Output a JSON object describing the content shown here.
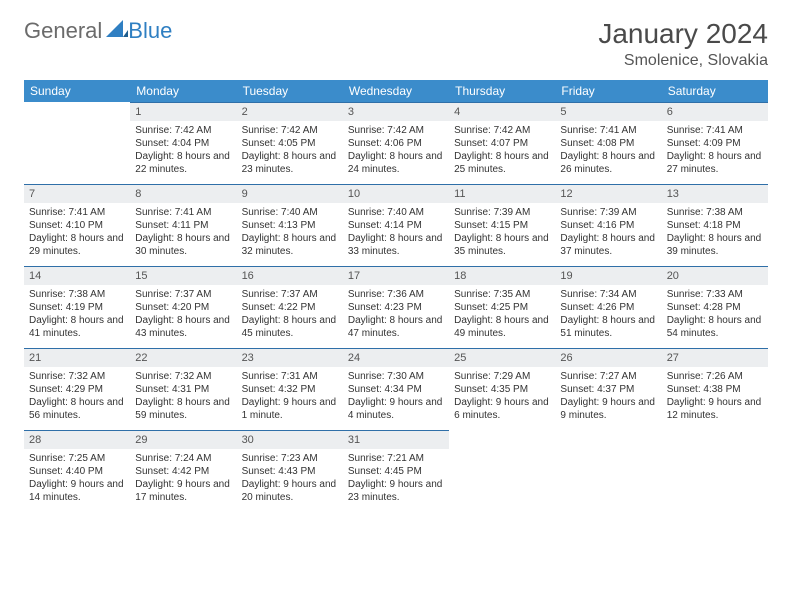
{
  "brand": {
    "part1": "General",
    "part2": "Blue"
  },
  "title": "January 2024",
  "location": "Smolenice, Slovakia",
  "colors": {
    "header_bg": "#3b8ccb",
    "header_text": "#ffffff",
    "daynum_bg": "#eceef0",
    "rule": "#2f6fa8",
    "body_text": "#333333",
    "title_text": "#4a4a4a",
    "brand_grey": "#6b6b6b",
    "brand_blue": "#2f7fc2"
  },
  "dayNames": [
    "Sunday",
    "Monday",
    "Tuesday",
    "Wednesday",
    "Thursday",
    "Friday",
    "Saturday"
  ],
  "startOffset": 1,
  "daysInMonth": 31,
  "days": {
    "1": {
      "sr": "7:42 AM",
      "ss": "4:04 PM",
      "dl": "8 hours and 22 minutes."
    },
    "2": {
      "sr": "7:42 AM",
      "ss": "4:05 PM",
      "dl": "8 hours and 23 minutes."
    },
    "3": {
      "sr": "7:42 AM",
      "ss": "4:06 PM",
      "dl": "8 hours and 24 minutes."
    },
    "4": {
      "sr": "7:42 AM",
      "ss": "4:07 PM",
      "dl": "8 hours and 25 minutes."
    },
    "5": {
      "sr": "7:41 AM",
      "ss": "4:08 PM",
      "dl": "8 hours and 26 minutes."
    },
    "6": {
      "sr": "7:41 AM",
      "ss": "4:09 PM",
      "dl": "8 hours and 27 minutes."
    },
    "7": {
      "sr": "7:41 AM",
      "ss": "4:10 PM",
      "dl": "8 hours and 29 minutes."
    },
    "8": {
      "sr": "7:41 AM",
      "ss": "4:11 PM",
      "dl": "8 hours and 30 minutes."
    },
    "9": {
      "sr": "7:40 AM",
      "ss": "4:13 PM",
      "dl": "8 hours and 32 minutes."
    },
    "10": {
      "sr": "7:40 AM",
      "ss": "4:14 PM",
      "dl": "8 hours and 33 minutes."
    },
    "11": {
      "sr": "7:39 AM",
      "ss": "4:15 PM",
      "dl": "8 hours and 35 minutes."
    },
    "12": {
      "sr": "7:39 AM",
      "ss": "4:16 PM",
      "dl": "8 hours and 37 minutes."
    },
    "13": {
      "sr": "7:38 AM",
      "ss": "4:18 PM",
      "dl": "8 hours and 39 minutes."
    },
    "14": {
      "sr": "7:38 AM",
      "ss": "4:19 PM",
      "dl": "8 hours and 41 minutes."
    },
    "15": {
      "sr": "7:37 AM",
      "ss": "4:20 PM",
      "dl": "8 hours and 43 minutes."
    },
    "16": {
      "sr": "7:37 AM",
      "ss": "4:22 PM",
      "dl": "8 hours and 45 minutes."
    },
    "17": {
      "sr": "7:36 AM",
      "ss": "4:23 PM",
      "dl": "8 hours and 47 minutes."
    },
    "18": {
      "sr": "7:35 AM",
      "ss": "4:25 PM",
      "dl": "8 hours and 49 minutes."
    },
    "19": {
      "sr": "7:34 AM",
      "ss": "4:26 PM",
      "dl": "8 hours and 51 minutes."
    },
    "20": {
      "sr": "7:33 AM",
      "ss": "4:28 PM",
      "dl": "8 hours and 54 minutes."
    },
    "21": {
      "sr": "7:32 AM",
      "ss": "4:29 PM",
      "dl": "8 hours and 56 minutes."
    },
    "22": {
      "sr": "7:32 AM",
      "ss": "4:31 PM",
      "dl": "8 hours and 59 minutes."
    },
    "23": {
      "sr": "7:31 AM",
      "ss": "4:32 PM",
      "dl": "9 hours and 1 minute."
    },
    "24": {
      "sr": "7:30 AM",
      "ss": "4:34 PM",
      "dl": "9 hours and 4 minutes."
    },
    "25": {
      "sr": "7:29 AM",
      "ss": "4:35 PM",
      "dl": "9 hours and 6 minutes."
    },
    "26": {
      "sr": "7:27 AM",
      "ss": "4:37 PM",
      "dl": "9 hours and 9 minutes."
    },
    "27": {
      "sr": "7:26 AM",
      "ss": "4:38 PM",
      "dl": "9 hours and 12 minutes."
    },
    "28": {
      "sr": "7:25 AM",
      "ss": "4:40 PM",
      "dl": "9 hours and 14 minutes."
    },
    "29": {
      "sr": "7:24 AM",
      "ss": "4:42 PM",
      "dl": "9 hours and 17 minutes."
    },
    "30": {
      "sr": "7:23 AM",
      "ss": "4:43 PM",
      "dl": "9 hours and 20 minutes."
    },
    "31": {
      "sr": "7:21 AM",
      "ss": "4:45 PM",
      "dl": "9 hours and 23 minutes."
    }
  },
  "labels": {
    "sunrise": "Sunrise:",
    "sunset": "Sunset:",
    "daylight": "Daylight:"
  }
}
